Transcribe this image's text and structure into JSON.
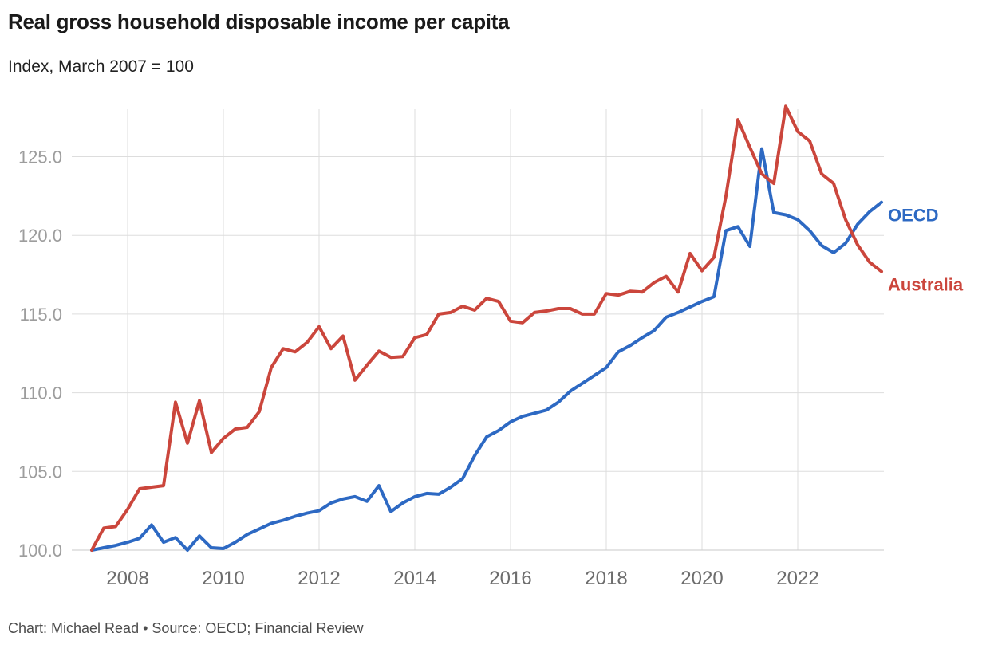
{
  "page": {
    "title": "Real gross household disposable income per capita",
    "subtitle": "Index, March 2007 = 100",
    "footer": "Chart: Michael Read • Source: OECD; Financial Review"
  },
  "chart_data": {
    "type": "line",
    "title": "Real gross household disposable income per capita",
    "subtitle": "Index, March 2007 = 100",
    "source": "Chart: Michael Read • Source: OECD; Financial Review",
    "x_unit": "quarterly",
    "x_start": "2007-Q1",
    "x_end": "2023-Q3",
    "x_tick_years": [
      "2008",
      "2010",
      "2012",
      "2014",
      "2016",
      "2018",
      "2020",
      "2022"
    ],
    "y_ticks": [
      100.0,
      105.0,
      110.0,
      115.0,
      120.0,
      125.0
    ],
    "ylim": [
      100,
      128.3
    ],
    "grid": true,
    "legend_position": "right-of-line-ends",
    "colors": {
      "oecd_blue": "#2d69c3",
      "australia_red": "#cb463c",
      "gridline": "#dddddd",
      "baseline": "#c9c9c9",
      "y_tick_label": "#9d9d9d",
      "x_tick_label": "#6d6d6d",
      "title_text": "#1a1a1a",
      "footer_text": "#4d4d4d"
    },
    "series": [
      {
        "name": "OECD",
        "color": "#2d69c3",
        "values": [
          100.0,
          100.15,
          100.3,
          100.5,
          100.75,
          101.6,
          100.5,
          100.8,
          100.0,
          100.9,
          100.15,
          100.1,
          100.5,
          101.0,
          101.35,
          101.7,
          101.9,
          102.15,
          102.35,
          102.5,
          103.0,
          103.25,
          103.4,
          103.1,
          104.1,
          102.45,
          103.0,
          103.4,
          103.6,
          103.55,
          104.0,
          104.55,
          106.0,
          107.2,
          107.6,
          108.15,
          108.5,
          108.7,
          108.9,
          109.4,
          110.1,
          110.6,
          111.1,
          111.6,
          112.6,
          113.0,
          113.5,
          113.95,
          114.8,
          115.1,
          115.45,
          115.8,
          116.1,
          120.3,
          120.55,
          119.3,
          125.5,
          121.45,
          121.3,
          121.0,
          120.3,
          119.35,
          118.9,
          119.5,
          120.7,
          121.5,
          122.1
        ]
      },
      {
        "name": "Australia",
        "color": "#cb463c",
        "values": [
          100.0,
          101.4,
          101.5,
          102.6,
          103.9,
          104.0,
          104.1,
          109.4,
          106.8,
          109.5,
          106.2,
          107.1,
          107.7,
          107.8,
          108.8,
          111.6,
          112.8,
          112.6,
          113.2,
          114.2,
          112.8,
          113.6,
          110.8,
          111.75,
          112.65,
          112.25,
          112.3,
          113.5,
          113.7,
          115.0,
          115.1,
          115.5,
          115.25,
          116.0,
          115.8,
          114.55,
          114.45,
          115.1,
          115.2,
          115.35,
          115.35,
          115.0,
          115.0,
          116.3,
          116.2,
          116.45,
          116.4,
          117.0,
          117.4,
          116.4,
          118.85,
          117.75,
          118.6,
          122.5,
          127.35,
          125.6,
          123.9,
          123.3,
          128.2,
          126.6,
          126.0,
          123.9,
          123.3,
          121.0,
          119.4,
          118.3,
          117.7
        ]
      }
    ]
  }
}
